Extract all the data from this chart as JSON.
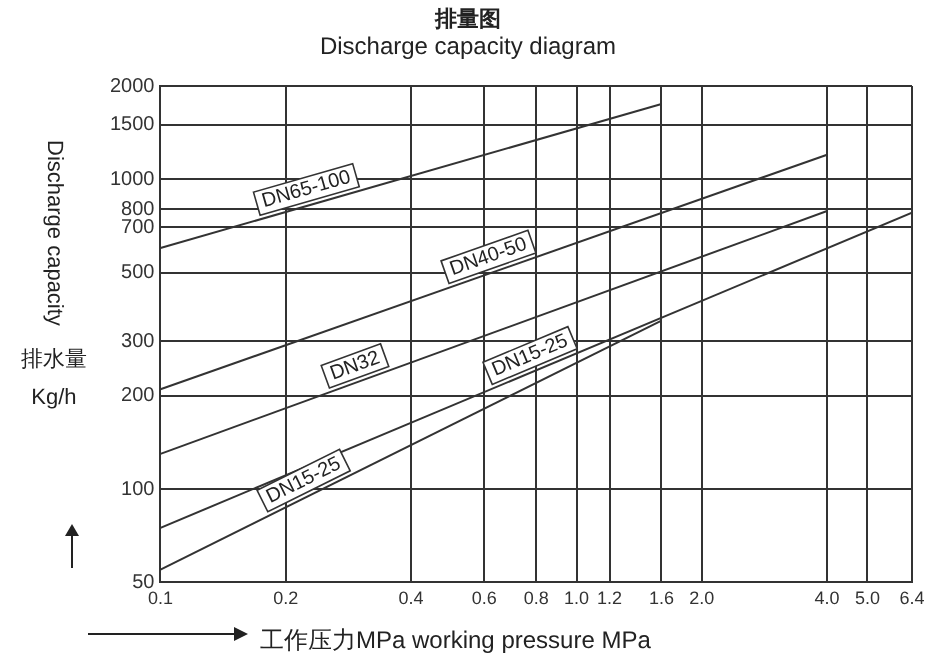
{
  "chart_data": {
    "type": "line",
    "title": "排量图",
    "subtitle": "Discharge capacity diagram",
    "xlabel": "工作压力MPa working pressure MPa",
    "ylabel": "Discharge capacity 排水量 Kg/h",
    "log": "xy",
    "grid": true,
    "legend": false,
    "marker": "none",
    "line_style": "solid",
    "xlim": [
      0.1,
      6.4
    ],
    "xticks": [
      0.1,
      0.2,
      0.4,
      0.6,
      0.8,
      {
        "value": 1,
        "label": "1.0"
      },
      1.2,
      1.6,
      {
        "value": 2,
        "label": "2.0"
      },
      {
        "value": 4,
        "label": "4.0"
      },
      {
        "value": 5,
        "label": "5.0"
      },
      6.4
    ],
    "ylim": [
      50,
      2000
    ],
    "yticks": [
      50,
      100,
      200,
      300,
      500,
      700,
      800,
      1000,
      1500,
      2000
    ],
    "series": [
      {
        "name": "DN65-100",
        "color": "#333333",
        "x": [
          0.1,
          1.6
        ],
        "values": [
          600,
          1750
        ]
      },
      {
        "name": "DN40-50",
        "color": "#333333",
        "x": [
          0.1,
          4
        ],
        "values": [
          210,
          1200
        ]
      },
      {
        "name": "DN32",
        "color": "#333333",
        "x": [
          0.1,
          4
        ],
        "values": [
          130,
          790
        ]
      },
      {
        "name": "DN15-25",
        "color": "#333333",
        "x": [
          0.1,
          6.4
        ],
        "values": [
          75,
          780
        ]
      },
      {
        "name": "DN15-25",
        "color": "#333333",
        "x": [
          0.1,
          1.6
        ],
        "values": [
          55,
          350
        ]
      }
    ]
  }
}
